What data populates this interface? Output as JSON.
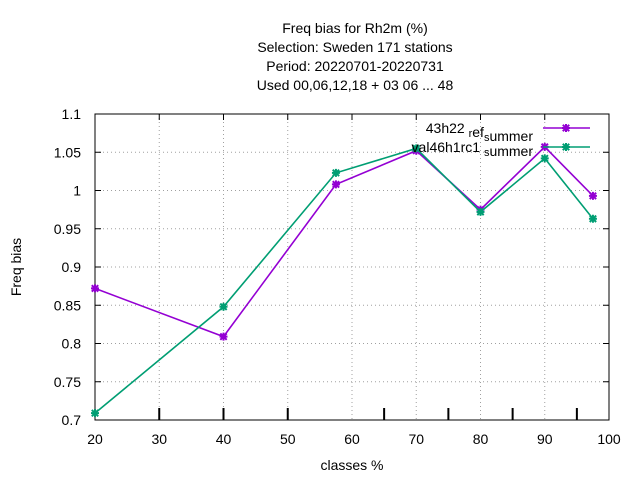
{
  "chart_data": {
    "type": "line",
    "title_lines": [
      "Freq bias  for Rh2m (%)",
      "Selection: Sweden    171 stations",
      "Period: 20220701-20220731",
      "Used  00,06,12,18  + 03 06 ... 48"
    ],
    "xlabel": "classes %",
    "ylabel": "Freq bias",
    "xlim": [
      20,
      100
    ],
    "ylim": [
      0.7,
      1.1
    ],
    "x_ticks": [
      20,
      30,
      40,
      50,
      60,
      70,
      80,
      90,
      100
    ],
    "y_ticks": [
      0.7,
      0.75,
      0.8,
      0.85,
      0.9,
      0.95,
      1,
      1.05,
      1.1
    ],
    "x_tick_labels": [
      "20",
      "30",
      "40",
      "50",
      "60",
      "70",
      "80",
      "90",
      "100"
    ],
    "y_tick_labels": [
      "0.7",
      "0.75",
      "0.8",
      "0.85",
      "0.9",
      "0.95",
      "1",
      "1.05",
      "1.1"
    ],
    "grid": true,
    "legend_position": "top-right",
    "bottom_minor_ticks": [
      30,
      40,
      50,
      65,
      75,
      85,
      95
    ],
    "series": [
      {
        "name": "43h22_ref_summer",
        "legend_main": "43h22",
        "legend_parts": [
          {
            "text": "43h22 ",
            "shift": 0
          },
          {
            "text": "r",
            "shift": 4
          },
          {
            "text": "ef",
            "shift": 0
          },
          {
            "text": "s",
            "shift": 4
          },
          {
            "text": "ummer",
            "shift": 0
          }
        ],
        "color": "#9400d3",
        "x": [
          20,
          40,
          57.5,
          70,
          80,
          90,
          97.5
        ],
        "y": [
          0.872,
          0.809,
          1.008,
          1.052,
          0.975,
          1.057,
          0.993
        ]
      },
      {
        "name": "val46h1rc1_summer",
        "legend_parts": [
          {
            "text": "val46h1rc1 ",
            "shift": 0
          },
          {
            "text": "s",
            "shift": 4
          },
          {
            "text": "ummer",
            "shift": 0
          }
        ],
        "color": "#009e73",
        "x": [
          20,
          40,
          57.5,
          70,
          80,
          90,
          97.5
        ],
        "y": [
          0.709,
          0.848,
          1.023,
          1.055,
          0.972,
          1.042,
          0.963
        ]
      }
    ]
  }
}
